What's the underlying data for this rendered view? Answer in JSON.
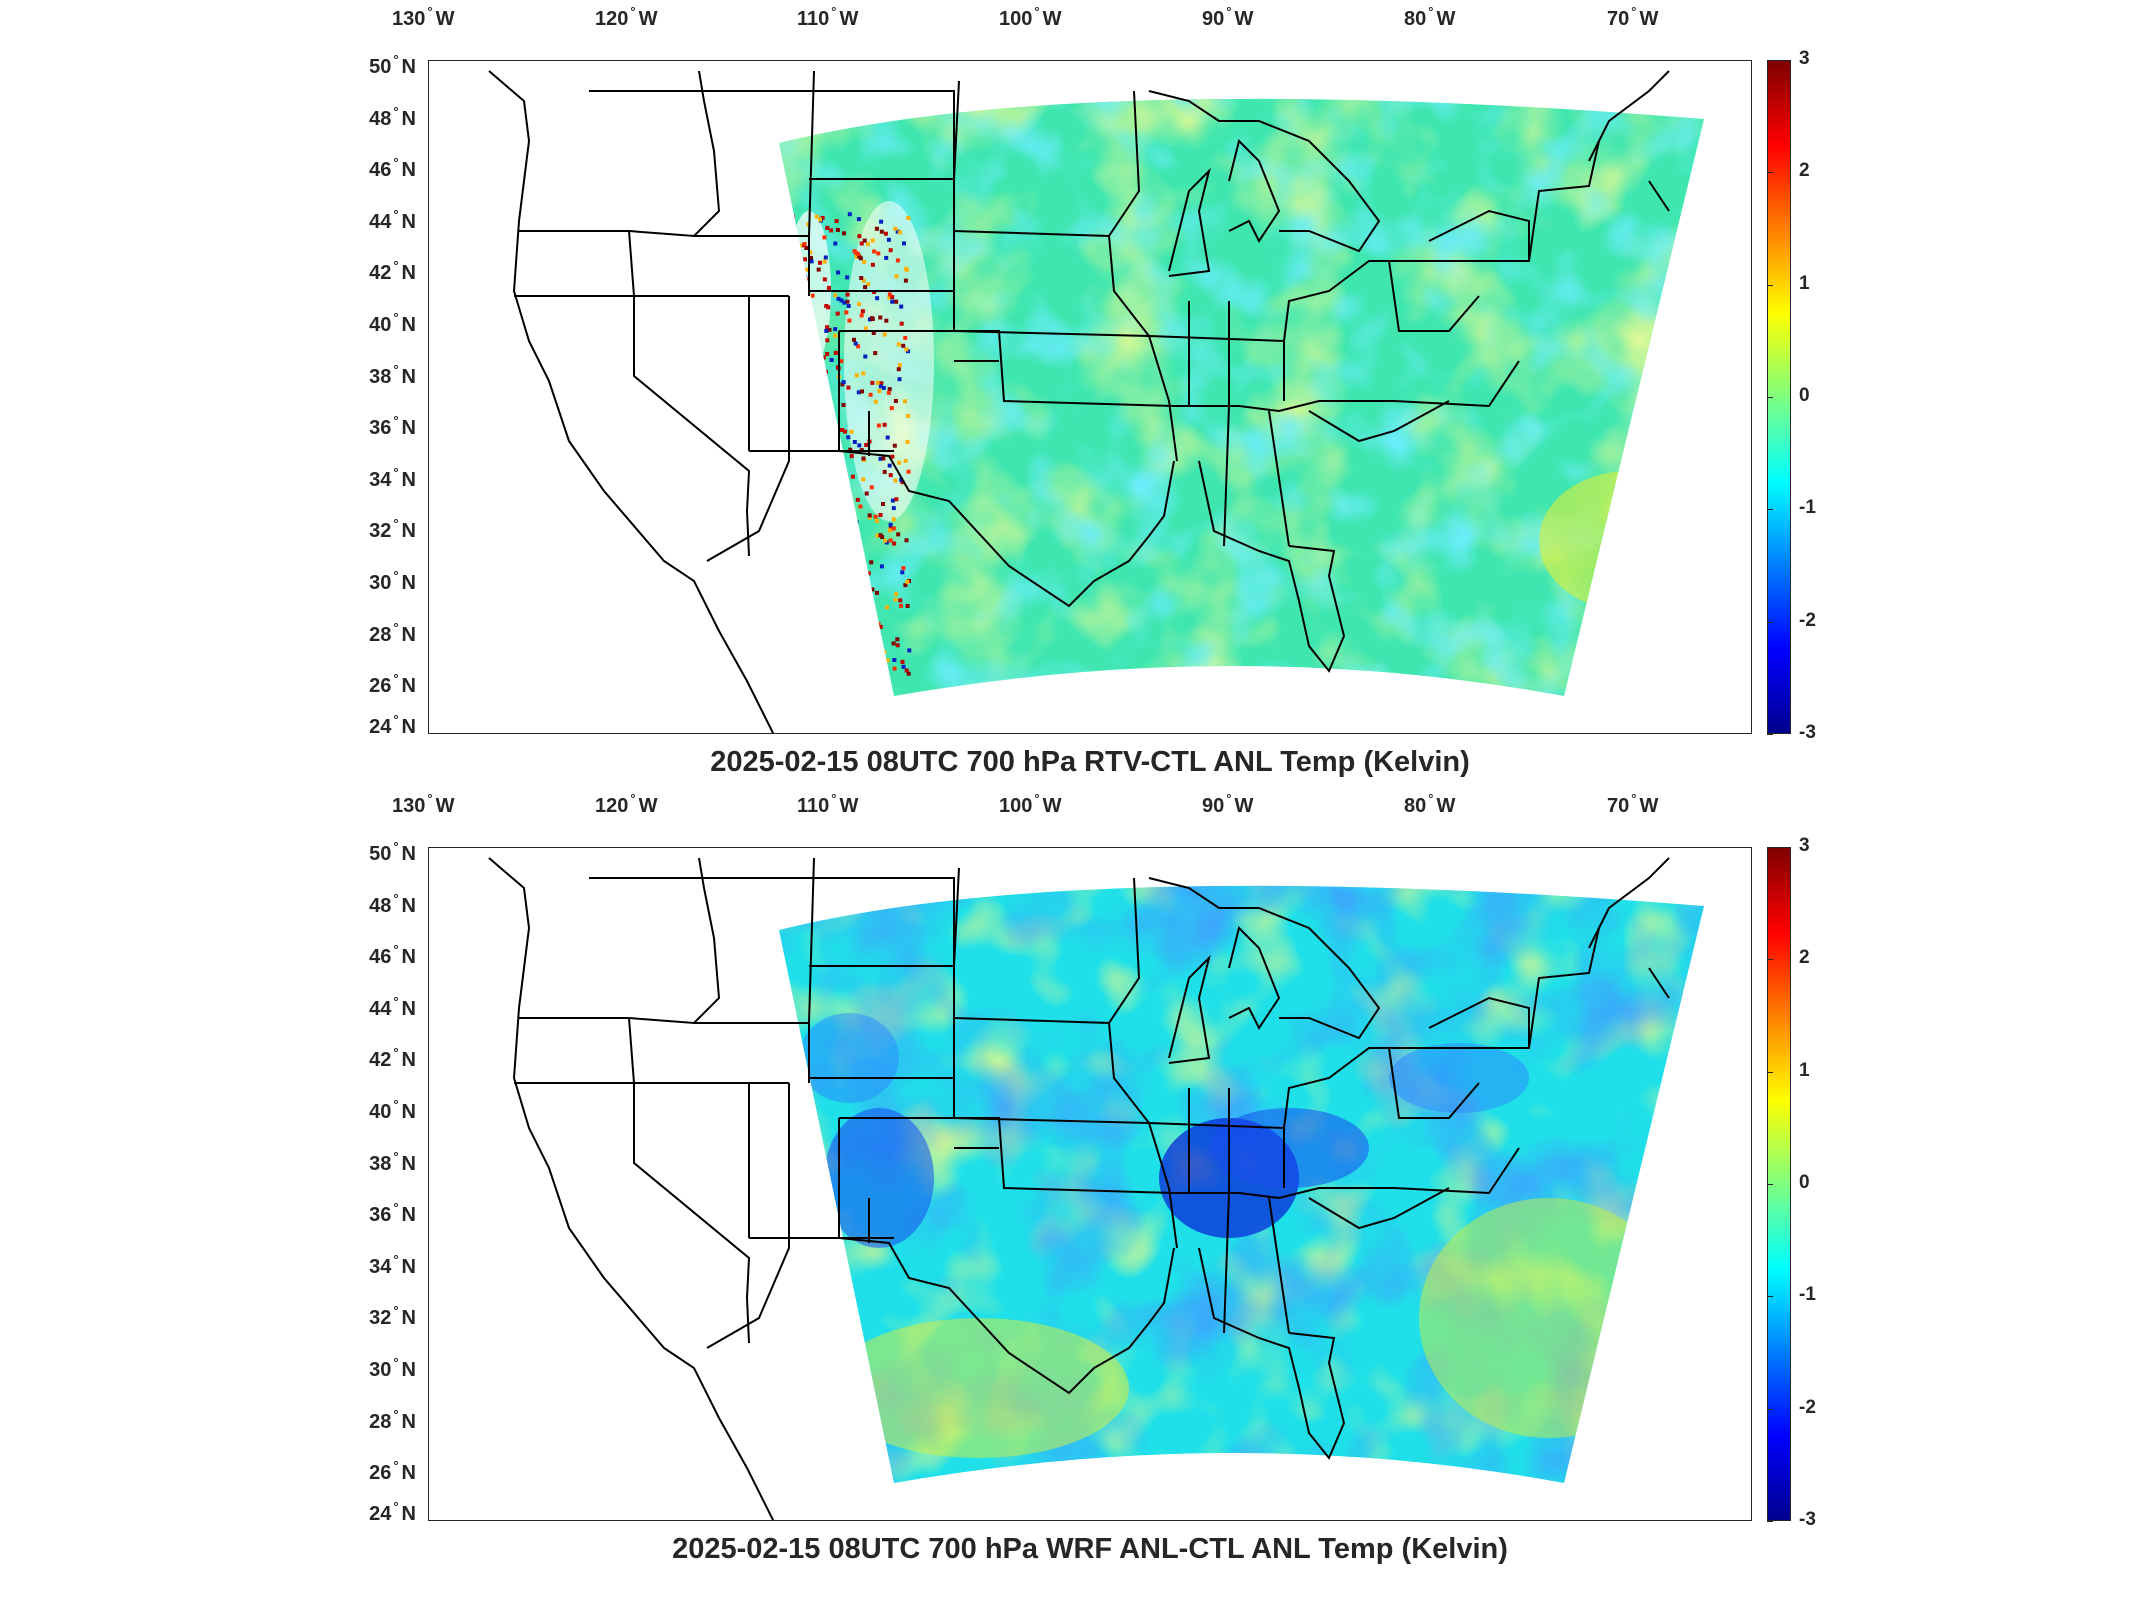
{
  "panels": [
    {
      "title": "2025-02-15 08UTC 700 hPa RTV-CTL ANL Temp (Kelvin)",
      "colors": {
        "base": "#3fe6b0",
        "accent_a": "#bff04a",
        "accent_b": "#28d8ff"
      }
    },
    {
      "title": "2025-02-15 08UTC 700 hPa WRF ANL-CTL ANL Temp (Kelvin)",
      "colors": {
        "base": "#1fe0e8",
        "accent_a": "#1a55ff",
        "accent_b": "#c8f040"
      }
    }
  ],
  "lon_labels": [
    "130",
    "120",
    "110",
    "100",
    "90",
    "80",
    "70"
  ],
  "lon_hemisphere": "W",
  "lat_labels": [
    "50",
    "48",
    "46",
    "44",
    "42",
    "40",
    "38",
    "36",
    "34",
    "32",
    "30",
    "28",
    "26",
    "24"
  ],
  "lat_hemisphere": "N",
  "degree_symbol": "°",
  "colorbar": {
    "ticks": [
      "3",
      "2",
      "1",
      "0",
      "-1",
      "-2",
      "-3"
    ],
    "colormap": "jet",
    "range": [
      -3,
      3
    ]
  },
  "map": {
    "projection": "lambert-conformal",
    "extent_lon": [
      -131.5,
      -65
    ],
    "extent_lat": [
      24,
      50
    ]
  }
}
